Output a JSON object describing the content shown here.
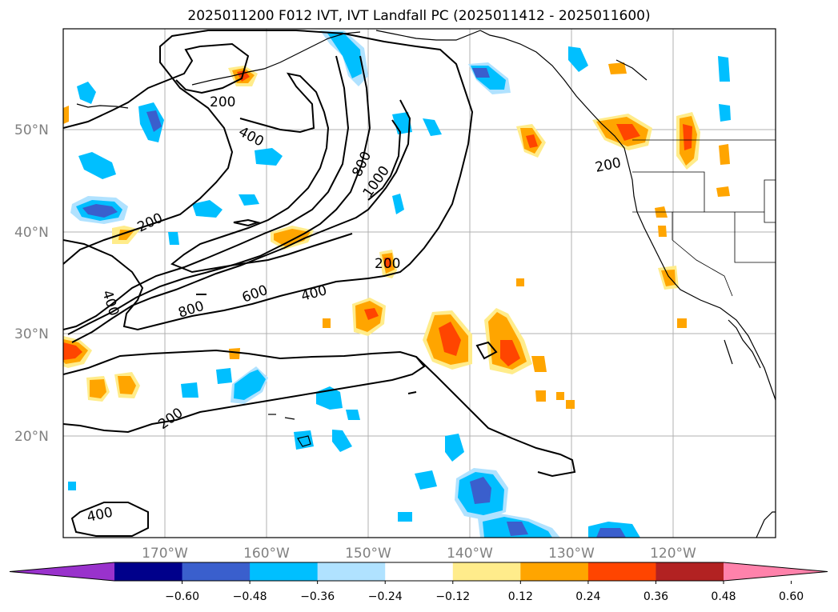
{
  "title": "2025011200 F012 IVT, IVT Landfall PC (2025011412 - 2025011600)",
  "lon_labels": [
    "170°W",
    "160°W",
    "150°W",
    "140°W",
    "130°W",
    "120°W"
  ],
  "lat_labels": [
    "50°N",
    "40°N",
    "30°N",
    "20°N"
  ],
  "contour_labels": {
    "c200a": "200",
    "c400a": "400",
    "c200b": "200",
    "c800": "800",
    "c1000": "1000",
    "c200c": "200",
    "c200d": "200",
    "c400b": "400",
    "c800b": "800",
    "c600": "600",
    "c400c": "400",
    "c200e": "200",
    "c400d": "400"
  },
  "colorbar": {
    "ticks": [
      "−0.60",
      "−0.48",
      "−0.36",
      "−0.24",
      "−0.12",
      "0.12",
      "0.24",
      "0.36",
      "0.48",
      "0.60"
    ],
    "colors": [
      "#9932cc",
      "#00008b",
      "#3a5fcd",
      "#00bfff",
      "#b0e2ff",
      "#ffffff",
      "#ffec8b",
      "#ffa500",
      "#ff4500",
      "#b22222",
      "#ff82ab"
    ]
  }
}
